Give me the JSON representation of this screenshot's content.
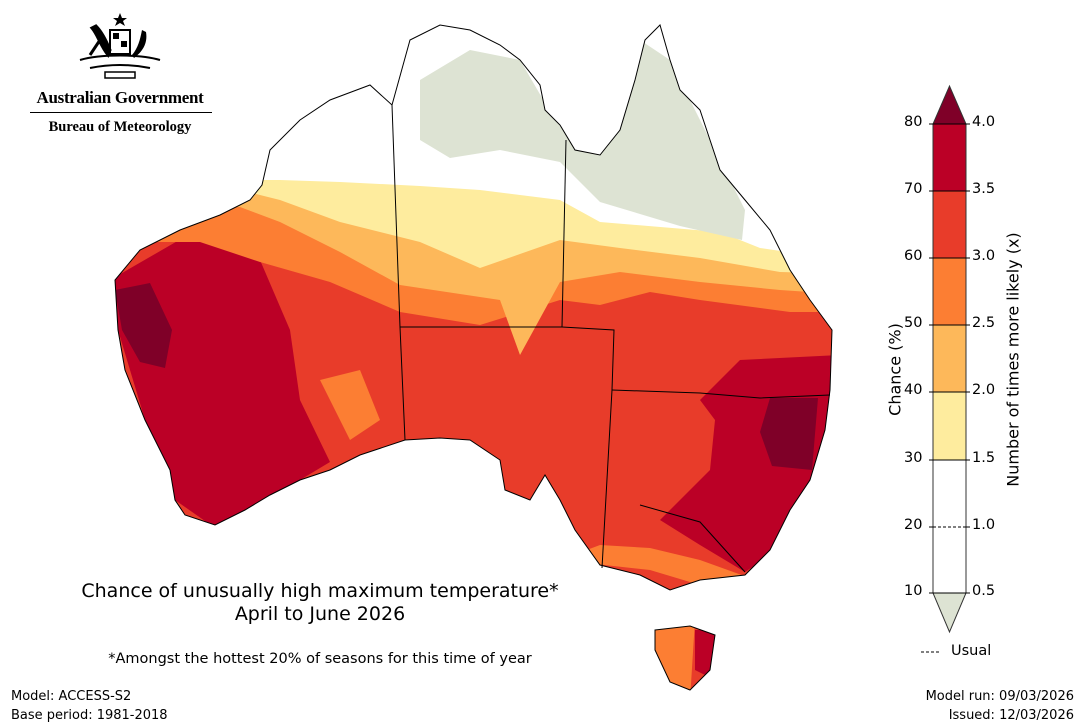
{
  "logo": {
    "line1": "Australian Government",
    "line2": "Bureau of Meteorology"
  },
  "title": {
    "line1": "Chance of unusually high maximum temperature*",
    "line2": "April to June 2026"
  },
  "footnote": "*Amongst the hottest 20% of seasons for this time of year",
  "model": "Model: ACCESS-S2",
  "base_period": "Base period: 1981-2018",
  "model_run": "Model run: 09/03/2026",
  "issued": "Issued: 12/03/2026",
  "legend": {
    "left_label": "Chance (%)",
    "right_label": "Number of times more likely (x)",
    "left_ticks": [
      "80",
      "70",
      "60",
      "50",
      "40",
      "30",
      "20",
      "10"
    ],
    "right_ticks": [
      "4.0",
      "3.5",
      "3.0",
      "2.5",
      "2.0",
      "1.5",
      "1.0",
      "0.5"
    ],
    "usual_label": "Usual",
    "colors": {
      "above_80": "#7f0028",
      "70_80": "#bb0026",
      "60_70": "#e83c2a",
      "50_60": "#fc7e33",
      "40_50": "#fdb85a",
      "30_40": "#feec9e",
      "10_30": "#ffffff",
      "below_10": "#dde3d3"
    }
  }
}
